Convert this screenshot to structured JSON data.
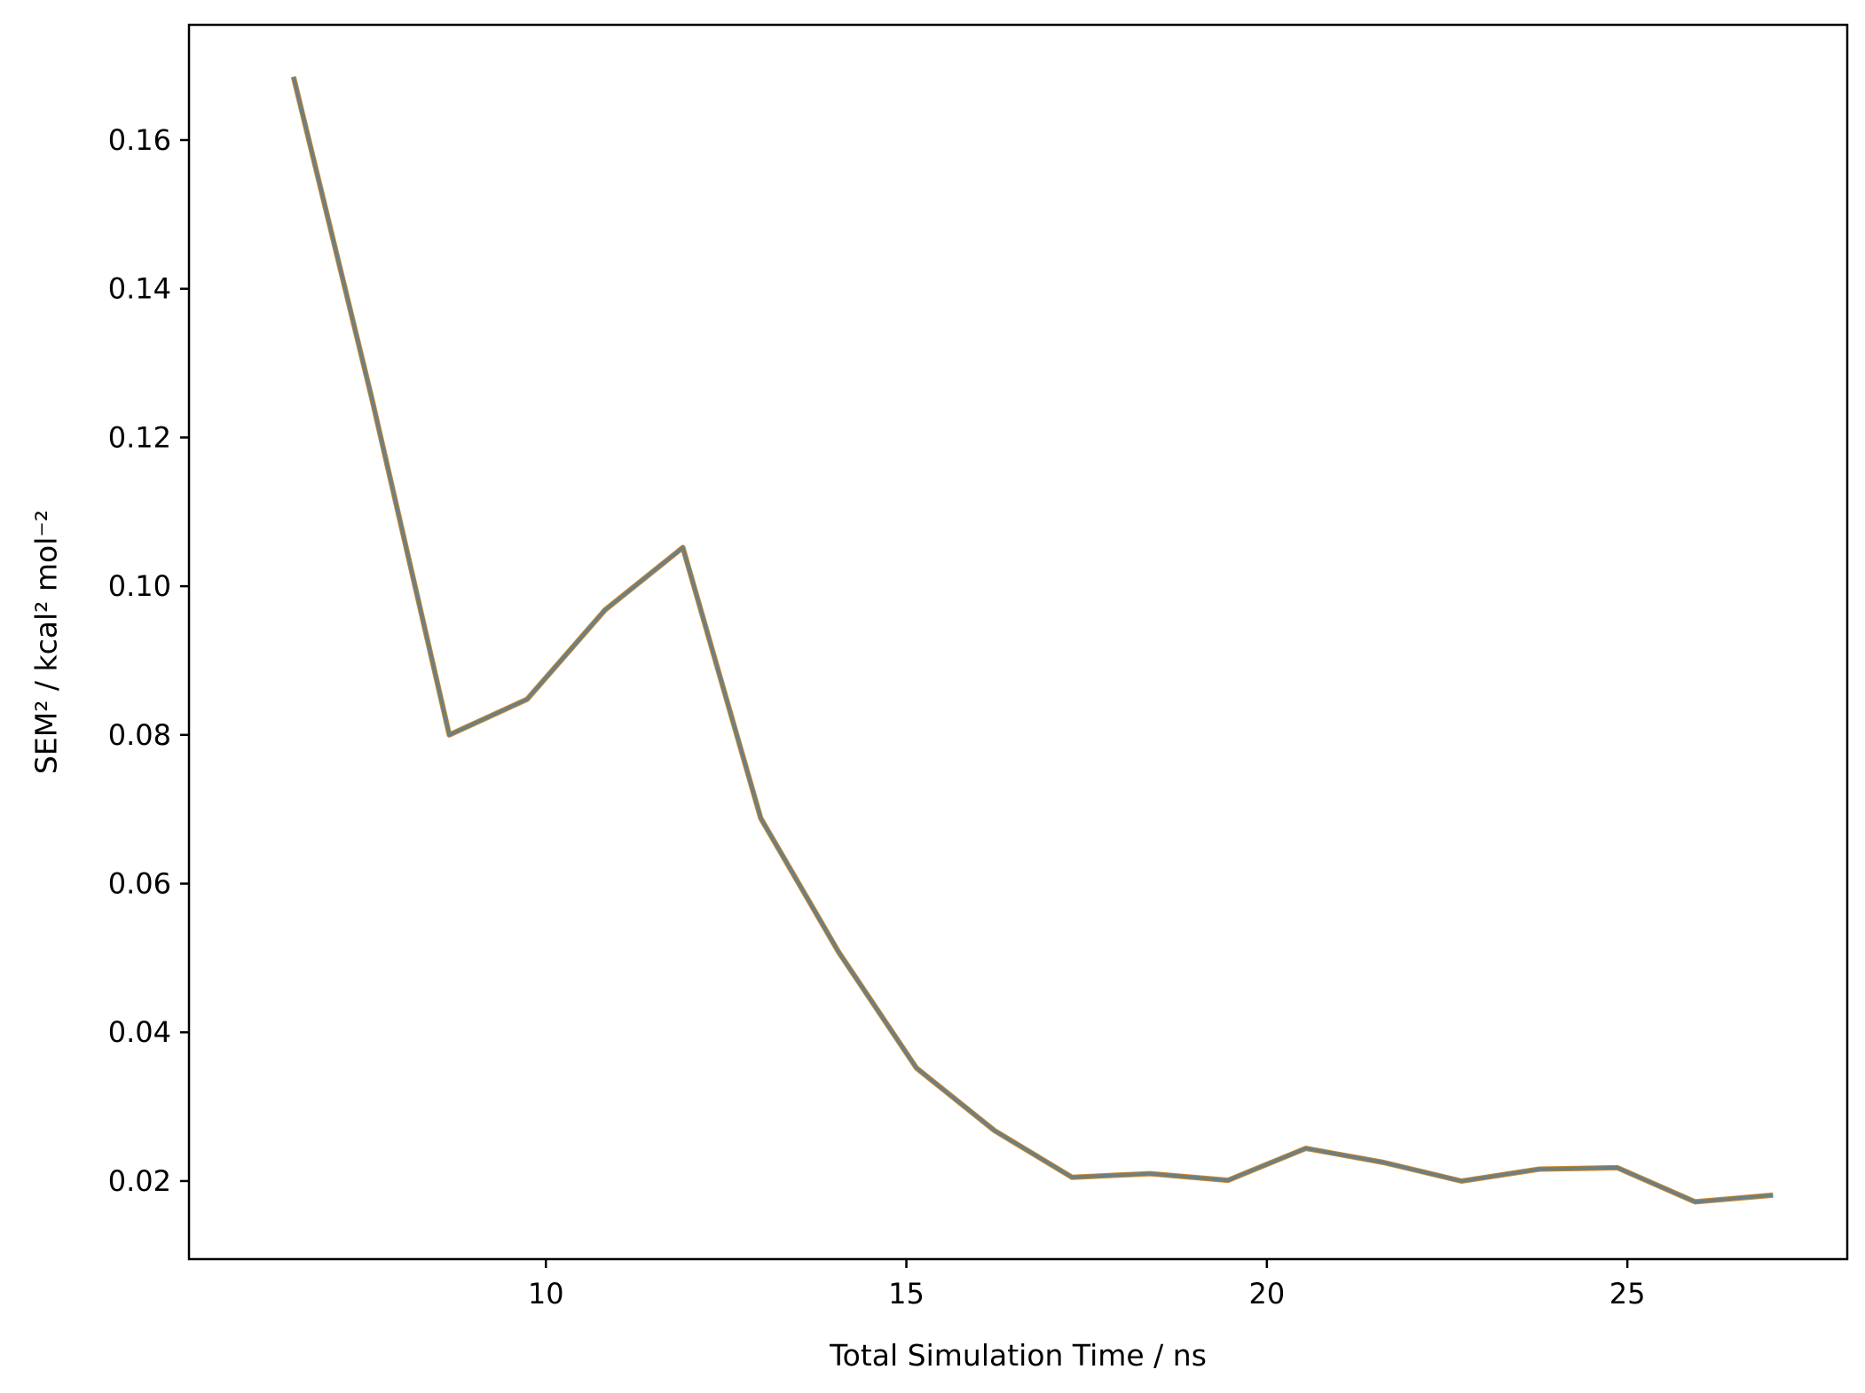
{
  "chart_data": {
    "type": "line",
    "title": "",
    "xlabel": "Total Simulation Time / ns",
    "ylabel": "SEM² / kcal² mol⁻²",
    "xlim": [
      5.05,
      28.05
    ],
    "ylim": [
      0.0095,
      0.1755
    ],
    "xticks": [
      10,
      15,
      20,
      25
    ],
    "xtick_labels": [
      "10",
      "15",
      "20",
      "25"
    ],
    "yticks": [
      0.02,
      0.04,
      0.06,
      0.08,
      0.1,
      0.12,
      0.14,
      0.16
    ],
    "ytick_labels": [
      "0.02",
      "0.04",
      "0.06",
      "0.08",
      "0.10",
      "0.12",
      "0.14",
      "0.16"
    ],
    "grid": false,
    "legend": false,
    "colors": {
      "line": "#6e7f80",
      "line_edge": "#c8862a",
      "frame": "#000000"
    },
    "series": [
      {
        "x": [
          6.5,
          7.58,
          8.66,
          9.74,
          10.82,
          11.9,
          12.98,
          14.06,
          15.14,
          16.22,
          17.3,
          18.38,
          19.46,
          20.54,
          21.62,
          22.7,
          23.78,
          24.86,
          25.94,
          27.02
        ],
        "y": [
          0.1685,
          0.1255,
          0.08,
          0.0848,
          0.0968,
          0.1052,
          0.0688,
          0.0508,
          0.0352,
          0.0268,
          0.0205,
          0.021,
          0.0201,
          0.0244,
          0.0225,
          0.02,
          0.0216,
          0.0218,
          0.0172,
          0.0181
        ]
      }
    ]
  }
}
